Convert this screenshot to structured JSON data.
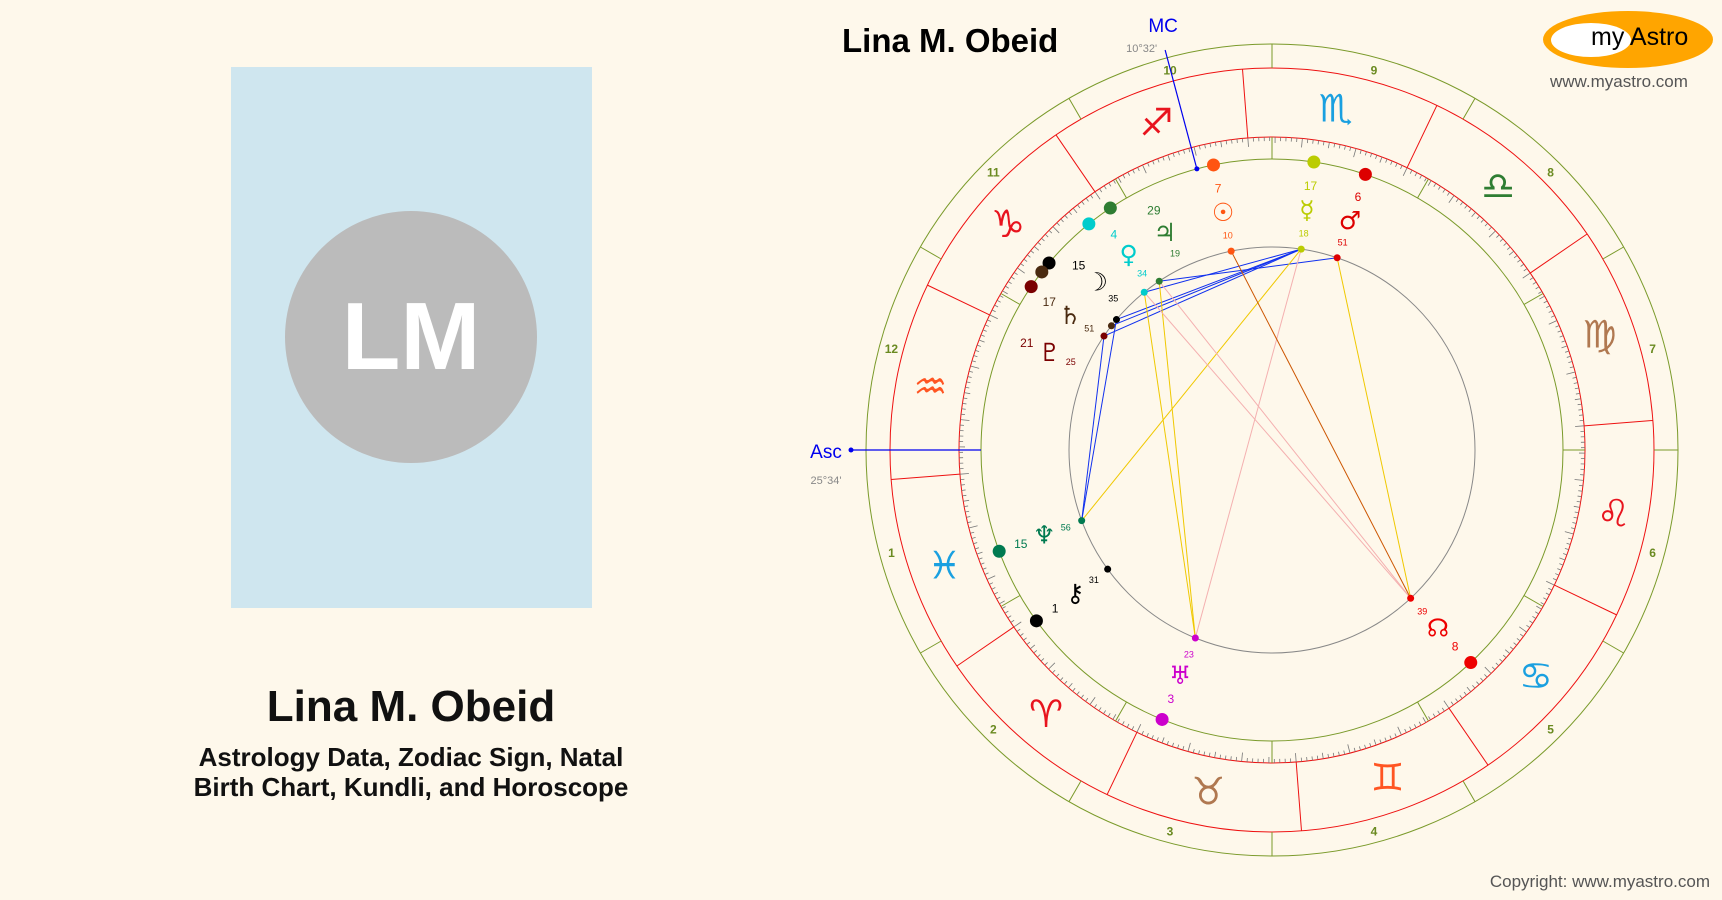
{
  "profile": {
    "initials": "LM",
    "name": "Lina M. Obeid",
    "subtitle_line1": "Astrology Data, Zodiac Sign, Natal",
    "subtitle_line2": "Birth Chart, Kundli, and Horoscope"
  },
  "chart_header": {
    "title": "Lina M. Obeid",
    "logo_text": "my Astro",
    "site": "www.myastro.com",
    "copyright": "Copyright: www.myastro.com"
  },
  "angles": {
    "asc_label": "Asc",
    "asc_degree": "25°34'",
    "asc_longitude": 325.57,
    "mc_label": "MC",
    "mc_degree": "10°32'",
    "mc_longitude": 250.53
  },
  "colors": {
    "background": "#fef8eb",
    "outer_ring": "#7a9a2a",
    "sign_ring": "#ee1111",
    "angle_line": "#0000ee"
  },
  "signs": [
    {
      "name": "aries",
      "glyph": "♈",
      "color": "#e8141e"
    },
    {
      "name": "taurus",
      "glyph": "♉",
      "color": "#b07850"
    },
    {
      "name": "gemini",
      "glyph": "♊",
      "color": "#ff5522"
    },
    {
      "name": "cancer",
      "glyph": "♋",
      "color": "#1aa0e0"
    },
    {
      "name": "leo",
      "glyph": "♌",
      "color": "#e8141e"
    },
    {
      "name": "virgo",
      "glyph": "♍",
      "color": "#b07850"
    },
    {
      "name": "libra",
      "glyph": "♎",
      "color": "#2e7d32"
    },
    {
      "name": "scorpio",
      "glyph": "♏",
      "color": "#1aa0e0"
    },
    {
      "name": "sagittarius",
      "glyph": "♐",
      "color": "#e8141e"
    },
    {
      "name": "capricorn",
      "glyph": "♑",
      "color": "#e8141e"
    },
    {
      "name": "aquarius",
      "glyph": "♒",
      "color": "#ff5522"
    },
    {
      "name": "pisces",
      "glyph": "♓",
      "color": "#1aa0e0"
    }
  ],
  "houses": [
    "1",
    "2",
    "3",
    "4",
    "5",
    "6",
    "7",
    "8",
    "9",
    "10",
    "11",
    "12"
  ],
  "planets": [
    {
      "name": "sun",
      "glyph": "☉",
      "deg": "7",
      "min": "10",
      "lon": 247.17,
      "color": "#ff5511"
    },
    {
      "name": "moon",
      "glyph": "☽",
      "deg": "15",
      "min": "35",
      "lon": 285.58,
      "color": "#000000"
    },
    {
      "name": "mercury",
      "glyph": "☿",
      "deg": "17",
      "min": "18",
      "lon": 227.3,
      "color": "#bbcc00"
    },
    {
      "name": "venus",
      "glyph": "♀",
      "deg": "4",
      "min": "34",
      "lon": 274.57,
      "color": "#00cccc"
    },
    {
      "name": "mars",
      "glyph": "♂",
      "deg": "6",
      "min": "51",
      "lon": 216.85,
      "color": "#dd0000"
    },
    {
      "name": "jupiter",
      "glyph": "♃",
      "deg": "29",
      "min": "19",
      "lon": 269.32,
      "color": "#2e7d32"
    },
    {
      "name": "saturn",
      "glyph": "♄",
      "deg": "17",
      "min": "51",
      "lon": 287.85,
      "color": "#4a2a10"
    },
    {
      "name": "uranus",
      "glyph": "♅",
      "deg": "3",
      "min": "23",
      "lon": 33.38,
      "color": "#cc00cc"
    },
    {
      "name": "neptune",
      "glyph": "♆",
      "deg": "15",
      "min": "56",
      "lon": 345.93,
      "color": "#007a50"
    },
    {
      "name": "pluto",
      "glyph": "♇",
      "deg": "21",
      "min": "25",
      "lon": 291.42,
      "color": "#7a0000"
    },
    {
      "name": "chiron",
      "glyph": "⚷",
      "deg": "1",
      "min": "31",
      "lon": 1.52,
      "color": "#000000"
    },
    {
      "name": "north-node",
      "glyph": "☊",
      "deg": "8",
      "min": "39",
      "lon": 98.65,
      "color": "#ee0000"
    }
  ],
  "aspects": [
    {
      "a": "moon",
      "b": "mercury",
      "color": "#1030ee"
    },
    {
      "a": "saturn",
      "b": "mercury",
      "color": "#1030ee"
    },
    {
      "a": "pluto",
      "b": "mercury",
      "color": "#1030ee"
    },
    {
      "a": "venus",
      "b": "mercury",
      "color": "#1030ee"
    },
    {
      "a": "jupiter",
      "b": "mars",
      "color": "#1030ee"
    },
    {
      "a": "pluto",
      "b": "neptune",
      "color": "#1030ee"
    },
    {
      "a": "moon",
      "b": "neptune",
      "color": "#1030ee"
    },
    {
      "a": "venus",
      "b": "uranus",
      "color": "#f0c800"
    },
    {
      "a": "jupiter",
      "b": "uranus",
      "color": "#f0c800"
    },
    {
      "a": "mercury",
      "b": "neptune",
      "color": "#f0c800"
    },
    {
      "a": "mars",
      "b": "north-node",
      "color": "#f0c800"
    },
    {
      "a": "mercury",
      "b": "uranus",
      "color": "#f4b0b0"
    },
    {
      "a": "venus",
      "b": "north-node",
      "color": "#f4b0b0"
    },
    {
      "a": "jupiter",
      "b": "north-node",
      "color": "#f4b0b0"
    },
    {
      "a": "sun",
      "b": "north-node",
      "color": "#cc5500"
    }
  ]
}
